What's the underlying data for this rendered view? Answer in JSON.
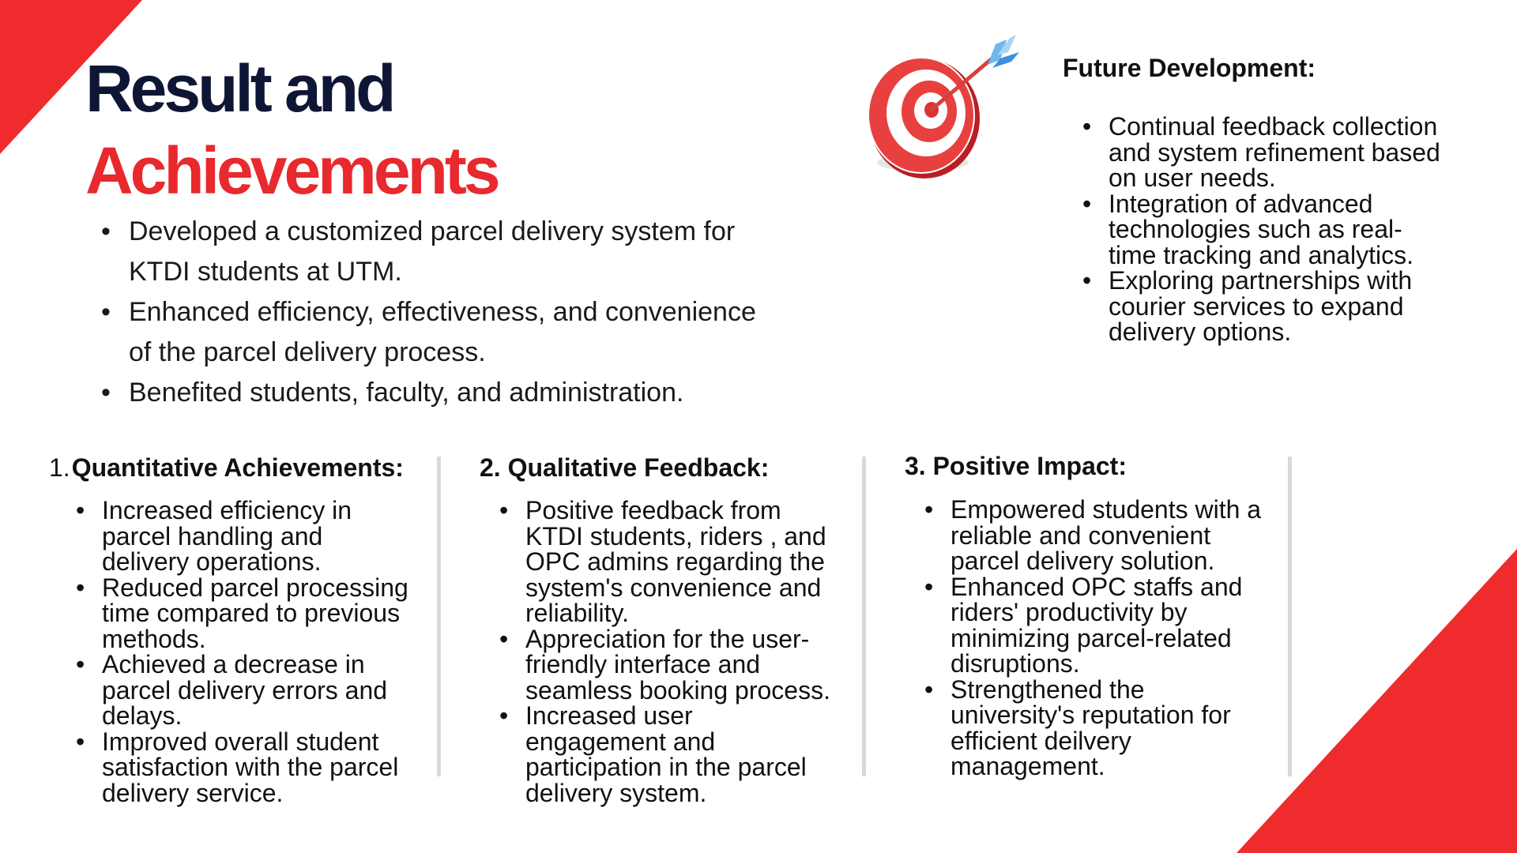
{
  "title": {
    "line1": "Result and",
    "line2": "Achievements"
  },
  "intro": [
    "Developed a customized parcel delivery system for KTDI students at UTM.",
    "Enhanced efficiency, effectiveness, and convenience of the parcel delivery process.",
    "Benefited students, faculty, and administration."
  ],
  "target_icon": "target-with-arrow-icon",
  "future": {
    "title": "Future Development:",
    "items": [
      "Continual feedback collection and system refinement based on user needs.",
      "Integration of advanced technologies such as real-time tracking and analytics.",
      "Exploring partnerships with courier services to expand delivery options."
    ]
  },
  "sections": [
    {
      "number": "1.",
      "title": "Quantitative Achievements:",
      "items": [
        "Increased efficiency in parcel handling and delivery operations.",
        "Reduced parcel processing time compared to previous methods.",
        "Achieved a decrease in parcel delivery errors and delays.",
        "Improved overall student satisfaction with the parcel delivery service."
      ]
    },
    {
      "number": "2.",
      "title": "Qualitative Feedback:",
      "items": [
        "Positive feedback from KTDI students, riders , and OPC admins regarding the system's convenience and reliability.",
        "Appreciation for the user-friendly interface and seamless booking process.",
        "Increased user engagement and participation in the parcel delivery system."
      ]
    },
    {
      "number": "3.",
      "title": "Positive Impact:",
      "items": [
        "Empowered students with a reliable and convenient parcel delivery solution.",
        "Enhanced OPC staffs and riders' productivity by minimizing parcel-related disruptions.",
        "Strengthened the university's reputation for efficient deilvery management."
      ]
    }
  ],
  "colors": {
    "accent_red": "#ef2b2d",
    "title_navy": "#0f1535",
    "title_red": "#e8292e",
    "divider_gray": "#d9d9d9"
  }
}
